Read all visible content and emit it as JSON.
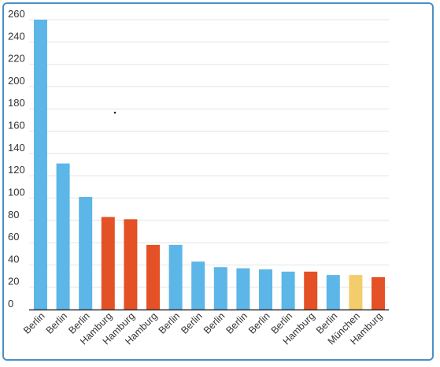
{
  "chart_data": {
    "type": "bar",
    "title": "",
    "xlabel": "",
    "ylabel": "",
    "ylim": [
      0,
      260
    ],
    "yticks": [
      0,
      20,
      40,
      60,
      80,
      100,
      120,
      140,
      160,
      180,
      200,
      220,
      240,
      260
    ],
    "grid": true,
    "legend": "none",
    "categories": [
      "Berlin",
      "Berlin",
      "Berlin",
      "Hamburg",
      "Hamburg",
      "Hamburg",
      "Berlin",
      "Berlin",
      "Berlin",
      "Berlin",
      "Berlin",
      "Berlin",
      "Hamburg",
      "Berlin",
      "München",
      "Hamburg"
    ],
    "values": [
      262,
      131,
      101,
      83,
      81,
      58,
      58,
      43,
      38,
      37,
      36,
      34,
      34,
      31,
      31,
      29
    ],
    "colors": {
      "Berlin": "#5db6e8",
      "Hamburg": "#e55126",
      "München": "#f3cd6b"
    },
    "gridColor": "#e4e4e4",
    "axisColor": "#333333"
  }
}
